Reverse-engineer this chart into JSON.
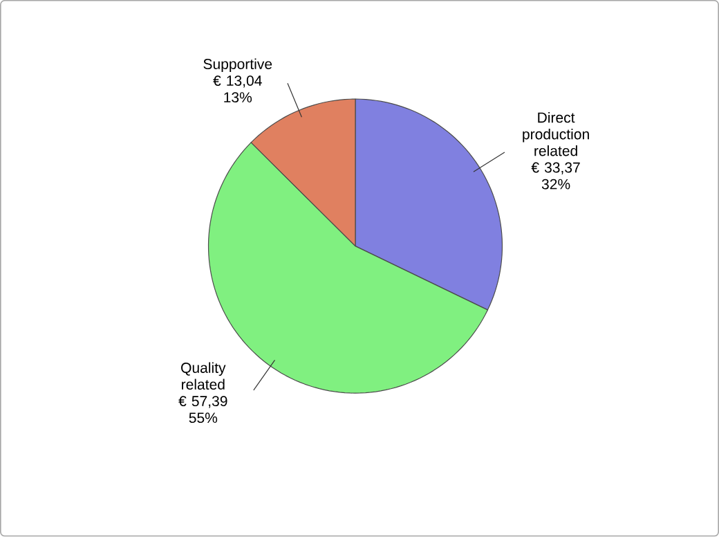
{
  "chart_data": {
    "type": "pie",
    "categories": [
      "Direct production related",
      "Quality related",
      "Supportive"
    ],
    "values": [
      33.37,
      57.39,
      13.04
    ],
    "value_labels": [
      "€ 33,37",
      "€ 57,39",
      "€ 13,04"
    ],
    "annotations": [
      "32%",
      "55%",
      "13%"
    ],
    "colors": [
      "#8080e0",
      "#80f080",
      "#e08060"
    ],
    "legend": false
  }
}
